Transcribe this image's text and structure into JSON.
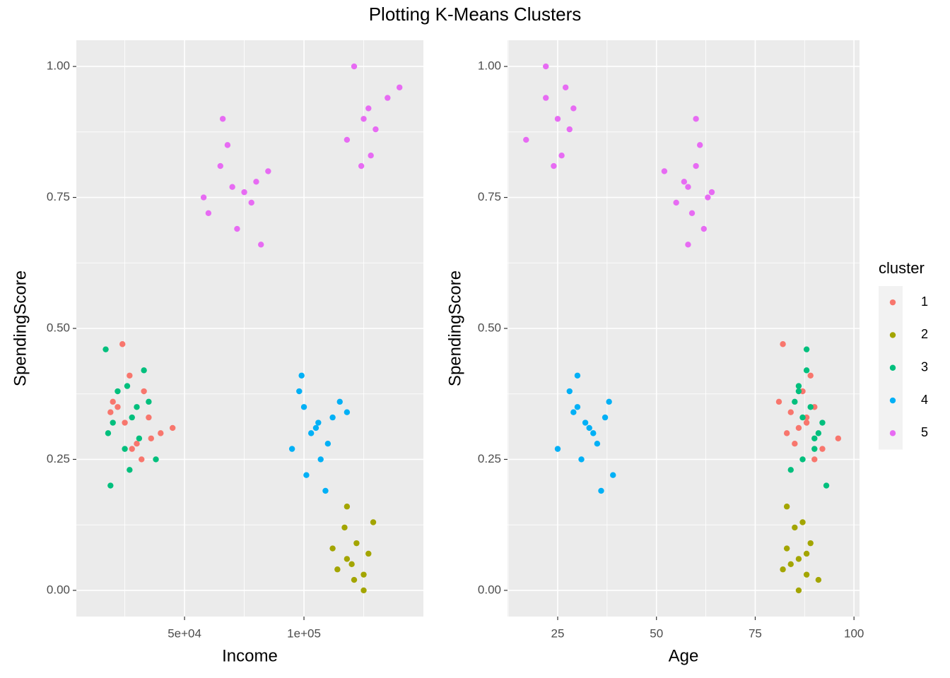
{
  "title": "Plotting K-Means Clusters",
  "legend": {
    "title": "cluster",
    "position": "right"
  },
  "chart_data": [
    {
      "type": "scatter",
      "x_label": "Income",
      "y_label": "SpendingScore",
      "grid": true,
      "xlim": [
        4700,
        150000
      ],
      "ylim": [
        -0.05,
        1.05
      ],
      "xticks": [
        {
          "value": 50000,
          "label": "5e+04"
        },
        {
          "value": 100000,
          "label": "1e+05"
        }
      ],
      "yticks": [
        {
          "value": 0,
          "label": "0.00"
        },
        {
          "value": 0.25,
          "label": "0.25"
        },
        {
          "value": 0.5,
          "label": "0.50"
        },
        {
          "value": 0.75,
          "label": "0.75"
        },
        {
          "value": 1,
          "label": "1.00"
        }
      ],
      "series": [
        {
          "name": "1",
          "color": "#F8766D",
          "x": [
            25000,
            30000,
            22000,
            33000,
            40000,
            24000,
            28000,
            19000,
            32000,
            45000,
            27000,
            36000,
            20000,
            35000
          ],
          "values": [
            0.32,
            0.28,
            0.35,
            0.38,
            0.3,
            0.47,
            0.27,
            0.34,
            0.25,
            0.31,
            0.41,
            0.29,
            0.36,
            0.33
          ]
        },
        {
          "name": "2",
          "color": "#A3A500",
          "x": [
            118000,
            122000,
            125000,
            117000,
            125000,
            112000,
            120000,
            118000,
            121000,
            127000,
            114000,
            129000
          ],
          "values": [
            0.06,
            0.09,
            0.03,
            0.12,
            0.0,
            0.08,
            0.05,
            0.16,
            0.02,
            0.07,
            0.04,
            0.13
          ]
        },
        {
          "name": "3",
          "color": "#00BF7D",
          "x": [
            28000,
            22000,
            25000,
            30000,
            33000,
            27000,
            18000,
            17000,
            35000,
            38000,
            20000,
            19000,
            26000,
            31000
          ],
          "values": [
            0.33,
            0.38,
            0.27,
            0.35,
            0.42,
            0.23,
            0.3,
            0.46,
            0.36,
            0.25,
            0.32,
            0.2,
            0.39,
            0.29
          ]
        },
        {
          "name": "4",
          "color": "#00B0F6",
          "x": [
            105000,
            100000,
            110000,
            98000,
            107000,
            112000,
            103000,
            99000,
            109000,
            115000,
            95000,
            106000,
            101000,
            118000
          ],
          "values": [
            0.31,
            0.35,
            0.28,
            0.38,
            0.25,
            0.33,
            0.3,
            0.41,
            0.19,
            0.36,
            0.27,
            0.32,
            0.22,
            0.34
          ]
        },
        {
          "name": "5",
          "color": "#E76BF3",
          "x": [
            70000,
            65000,
            78000,
            72000,
            68000,
            80000,
            60000,
            66000,
            82000,
            75000,
            85000,
            58000,
            125000,
            130000,
            135000,
            128000,
            121000,
            118000,
            127000,
            124000,
            140000
          ],
          "values": [
            0.77,
            0.81,
            0.74,
            0.69,
            0.85,
            0.78,
            0.72,
            0.9,
            0.66,
            0.76,
            0.8,
            0.75,
            0.9,
            0.88,
            0.94,
            0.83,
            1.0,
            0.86,
            0.92,
            0.81,
            0.96
          ]
        }
      ]
    },
    {
      "type": "scatter",
      "x_label": "Age",
      "y_label": "SpendingScore",
      "grid": true,
      "xlim": [
        12.3,
        101.4
      ],
      "ylim": [
        -0.05,
        1.05
      ],
      "xticks": [
        25,
        50,
        75,
        100
      ],
      "yticks": [
        {
          "value": 0,
          "label": "0.00"
        },
        {
          "value": 0.25,
          "label": "0.25"
        },
        {
          "value": 0.5,
          "label": "0.50"
        },
        {
          "value": 0.75,
          "label": "0.75"
        },
        {
          "value": 1,
          "label": "1.00"
        }
      ],
      "series": [
        {
          "name": "1",
          "color": "#F8766D",
          "x": [
            88,
            85,
            90,
            87,
            83,
            82,
            92,
            84,
            90,
            86,
            89,
            96,
            81,
            88
          ],
          "values": [
            0.32,
            0.28,
            0.35,
            0.38,
            0.3,
            0.47,
            0.27,
            0.34,
            0.25,
            0.31,
            0.41,
            0.29,
            0.36,
            0.33
          ]
        },
        {
          "name": "2",
          "color": "#A3A500",
          "x": [
            86,
            89,
            88,
            85,
            86,
            83,
            84,
            83,
            91,
            88,
            82,
            87
          ],
          "values": [
            0.06,
            0.09,
            0.03,
            0.12,
            0.0,
            0.08,
            0.05,
            0.16,
            0.02,
            0.07,
            0.04,
            0.13
          ]
        },
        {
          "name": "3",
          "color": "#00BF7D",
          "x": [
            87,
            86,
            90,
            89,
            88,
            84,
            91,
            88,
            85,
            87,
            92,
            93,
            86,
            90
          ],
          "values": [
            0.33,
            0.38,
            0.27,
            0.35,
            0.42,
            0.23,
            0.3,
            0.46,
            0.36,
            0.25,
            0.32,
            0.2,
            0.39,
            0.29
          ]
        },
        {
          "name": "4",
          "color": "#00B0F6",
          "x": [
            33,
            30,
            35,
            28,
            31,
            37,
            34,
            30,
            36,
            38,
            25,
            32,
            39,
            29
          ],
          "values": [
            0.31,
            0.35,
            0.28,
            0.38,
            0.25,
            0.33,
            0.3,
            0.41,
            0.19,
            0.36,
            0.27,
            0.32,
            0.22,
            0.34
          ]
        },
        {
          "name": "5",
          "color": "#E76BF3",
          "x": [
            58,
            60,
            55,
            62,
            61,
            57,
            59,
            60,
            58,
            64,
            52,
            63,
            25,
            28,
            22,
            26,
            22,
            17,
            29,
            24,
            27
          ],
          "values": [
            0.77,
            0.81,
            0.74,
            0.69,
            0.85,
            0.78,
            0.72,
            0.9,
            0.66,
            0.76,
            0.8,
            0.75,
            0.9,
            0.88,
            0.94,
            0.83,
            1.0,
            0.86,
            0.92,
            0.81,
            0.96
          ]
        }
      ]
    }
  ]
}
